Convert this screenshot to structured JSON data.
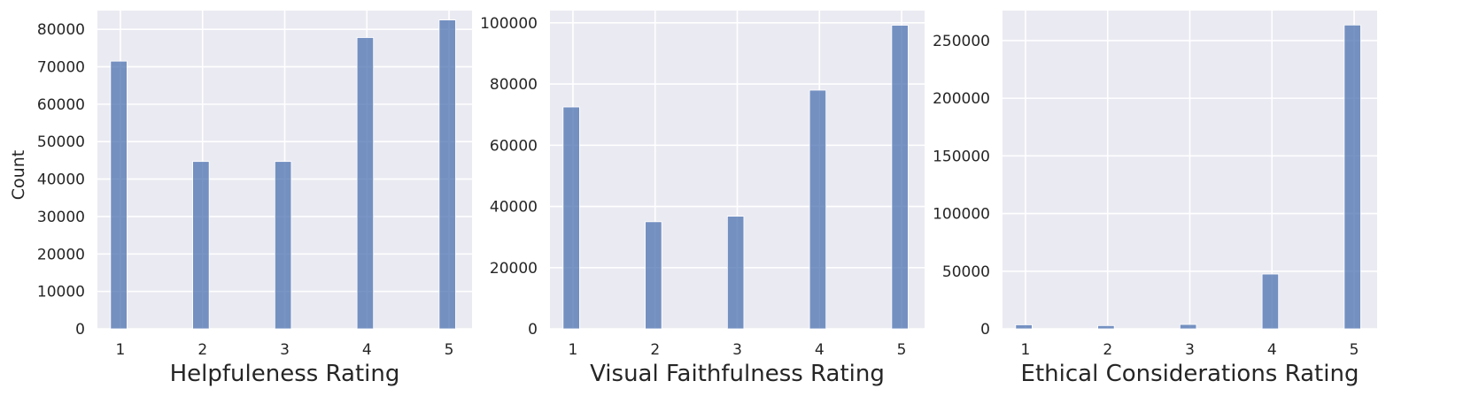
{
  "chart_data": [
    {
      "type": "bar",
      "title": "",
      "xlabel": "Helpfuleness Rating",
      "ylabel": "Count",
      "categories": [
        "1",
        "2",
        "3",
        "4",
        "5"
      ],
      "values": [
        71500,
        44700,
        44700,
        77800,
        82500
      ],
      "ylim": [
        0,
        85000
      ],
      "yticks": [
        0,
        10000,
        20000,
        30000,
        40000,
        50000,
        60000,
        70000,
        80000
      ],
      "grid": true,
      "color": "#4c72b0"
    },
    {
      "type": "bar",
      "title": "",
      "xlabel": "Visual Faithfulness Rating",
      "ylabel": "",
      "categories": [
        "1",
        "2",
        "3",
        "4",
        "5"
      ],
      "values": [
        72500,
        35000,
        36800,
        78000,
        99200
      ],
      "ylim": [
        0,
        104000
      ],
      "yticks": [
        0,
        20000,
        40000,
        60000,
        80000,
        100000
      ],
      "grid": true,
      "color": "#4c72b0"
    },
    {
      "type": "bar",
      "title": "",
      "xlabel": "Ethical Considerations Rating",
      "ylabel": "",
      "categories": [
        "1",
        "2",
        "3",
        "4",
        "5"
      ],
      "values": [
        3500,
        2800,
        3800,
        47500,
        263500
      ],
      "ylim": [
        0,
        276000
      ],
      "yticks": [
        0,
        50000,
        100000,
        150000,
        200000,
        250000
      ],
      "grid": true,
      "color": "#4c72b0"
    }
  ]
}
